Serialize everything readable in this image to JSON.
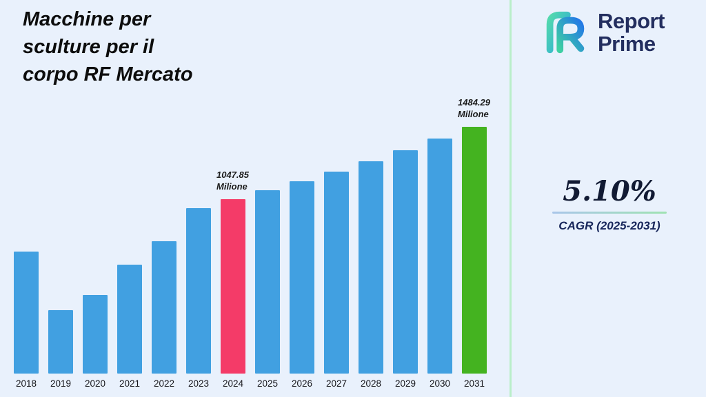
{
  "header": {
    "title_lines": [
      "Macchine per",
      "sculture per il",
      "corpo RF Mercato"
    ]
  },
  "brand": {
    "name_line1": "Report",
    "name_line2": "Prime",
    "text_color": "#232e5f",
    "logo_teal": "#3ed0a2",
    "logo_blue": "#2277e8"
  },
  "stats": {
    "cagr_value": "5.10%",
    "cagr_label": "CAGR (2025-2031)"
  },
  "theme": {
    "background": "#e9f1fc",
    "divider_green": "#b9eec9",
    "bar_blue": "#41a0e1",
    "bar_pink": "#f43b68",
    "bar_green": "#44b320"
  },
  "chart_data": {
    "type": "bar",
    "title": "Macchine per sculture per il corpo RF Mercato",
    "xlabel": "",
    "ylabel": "",
    "unit": "Milione",
    "grid": false,
    "legend_position": "none",
    "ylim": [
      0,
      1550
    ],
    "categories": [
      "2018",
      "2019",
      "2020",
      "2021",
      "2022",
      "2023",
      "2024",
      "2025",
      "2026",
      "2027",
      "2028",
      "2029",
      "2030",
      "2031"
    ],
    "values": [
      735,
      382,
      474,
      657,
      795,
      993,
      1047.85,
      1101.29,
      1157.45,
      1216.48,
      1278.52,
      1343.73,
      1412.26,
      1484.29
    ],
    "bar_colors": {
      "default": "#41a0e1",
      "2024": "#f43b68",
      "2031": "#44b320"
    },
    "annotations": [
      {
        "category": "2024",
        "value_text": "1047.85",
        "unit_text": "Milione"
      },
      {
        "category": "2031",
        "value_text": "1484.29",
        "unit_text": "Milione"
      }
    ]
  }
}
